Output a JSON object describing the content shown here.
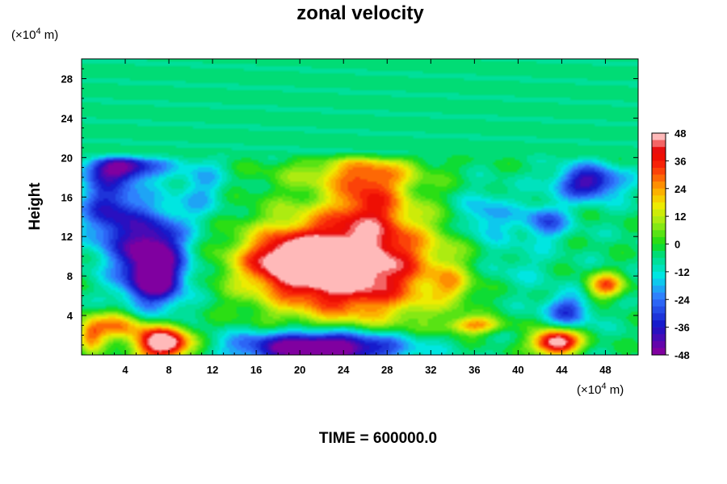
{
  "chart_data": {
    "type": "heatmap",
    "title": "zonal velocity",
    "ylabel": "Height",
    "xlabel": "",
    "x_unit": "(×10",
    "x_unit_exp": "4",
    "x_unit_tail": " m)",
    "y_unit": "(×10",
    "y_unit_exp": "4",
    "y_unit_tail": " m)",
    "x_range": [
      0,
      51
    ],
    "y_range": [
      0,
      30
    ],
    "x_ticks": [
      4,
      8,
      12,
      16,
      20,
      24,
      28,
      32,
      36,
      40,
      44,
      48
    ],
    "x_tick_labels": [
      "4",
      "8",
      "12",
      "16",
      "20",
      "24",
      "28",
      "32",
      "36",
      "40",
      "44",
      "48"
    ],
    "y_ticks": [
      4,
      8,
      12,
      16,
      20,
      24,
      28
    ],
    "y_tick_labels": [
      "4",
      "8",
      "12",
      "16",
      "20",
      "24",
      "28"
    ],
    "colorbar": {
      "min": -48,
      "max": 48,
      "levels": 32,
      "tick_values": [
        48,
        36,
        24,
        12,
        0,
        -12,
        -24,
        -36,
        -48
      ],
      "tick_labels": [
        "48",
        "36",
        "24",
        "12",
        "0",
        "-12",
        "-24",
        "-36",
        "-48"
      ]
    },
    "background_value": -5,
    "features": [
      {
        "x": 6.5,
        "y": 9.5,
        "rx": 3.5,
        "ry": 5.5,
        "value": -58
      },
      {
        "x": 7.0,
        "y": 7.5,
        "rx": 2.0,
        "ry": 1.5,
        "value": -20
      },
      {
        "x": 2.5,
        "y": 15.0,
        "rx": 3.0,
        "ry": 5.0,
        "value": -35
      },
      {
        "x": 11.0,
        "y": 17.0,
        "rx": 2.5,
        "ry": 4.0,
        "value": -18
      },
      {
        "x": 24.5,
        "y": 9.0,
        "rx": 9.5,
        "ry": 6.5,
        "value": 56
      },
      {
        "x": 19.0,
        "y": 9.5,
        "rx": 5.0,
        "ry": 3.0,
        "value": 30
      },
      {
        "x": 26.5,
        "y": 16.0,
        "rx": 4.0,
        "ry": 4.5,
        "value": 22
      },
      {
        "x": 25.0,
        "y": 18.5,
        "rx": 8.0,
        "ry": 2.0,
        "value": 12
      },
      {
        "x": 22.0,
        "y": 0.8,
        "rx": 8.5,
        "ry": 2.0,
        "value": -64
      },
      {
        "x": 7.5,
        "y": 1.2,
        "rx": 3.0,
        "ry": 2.0,
        "value": 60
      },
      {
        "x": 3.5,
        "y": 3.0,
        "rx": 3.0,
        "ry": 1.8,
        "value": 25
      },
      {
        "x": 43.5,
        "y": 1.3,
        "rx": 2.5,
        "ry": 1.5,
        "value": 55
      },
      {
        "x": 46.5,
        "y": 17.5,
        "rx": 3.5,
        "ry": 2.0,
        "value": -42
      },
      {
        "x": 42.5,
        "y": 13.5,
        "rx": 2.5,
        "ry": 2.0,
        "value": -28
      },
      {
        "x": 37.0,
        "y": 14.0,
        "rx": 3.0,
        "ry": 3.0,
        "value": -22
      },
      {
        "x": 48.0,
        "y": 7.0,
        "rx": 2.0,
        "ry": 1.5,
        "value": 30
      },
      {
        "x": 44.5,
        "y": 4.5,
        "rx": 2.5,
        "ry": 2.0,
        "value": -30
      },
      {
        "x": 36.0,
        "y": 3.0,
        "rx": 3.0,
        "ry": 1.0,
        "value": 24
      },
      {
        "x": 39.5,
        "y": 9.0,
        "rx": 4.0,
        "ry": 3.0,
        "value": -12
      },
      {
        "x": 34.0,
        "y": 7.0,
        "rx": 2.0,
        "ry": 2.0,
        "value": 10
      },
      {
        "x": 0.8,
        "y": 2.0,
        "rx": 1.5,
        "ry": 2.0,
        "value": 25
      },
      {
        "x": 4.0,
        "y": 19.0,
        "rx": 4.0,
        "ry": 1.5,
        "value": -40
      }
    ],
    "upper_layer": {
      "from_y": 20,
      "value": -5
    }
  },
  "footer": {
    "time_label": "TIME = 600000.0"
  }
}
